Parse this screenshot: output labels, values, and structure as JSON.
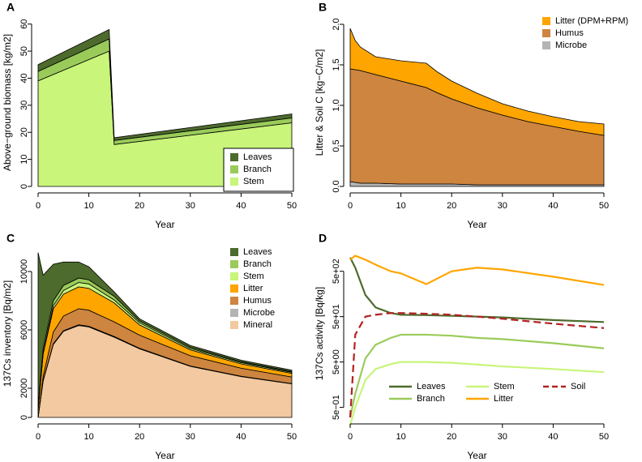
{
  "chart_data": [
    {
      "type": "area",
      "title": "A",
      "xlabel": "Year",
      "ylabel": "Above−ground biomass [kg/m2]",
      "x": [
        0,
        14,
        15,
        50
      ],
      "series": [
        {
          "name": "Stem",
          "color": "#c8f57a",
          "values": [
            39,
            50,
            15.5,
            23.5
          ]
        },
        {
          "name": "Branch",
          "color": "#9acb5a",
          "values": [
            3.5,
            4.5,
            1.5,
            1.8
          ]
        },
        {
          "name": "Leaves",
          "color": "#4d6b2c",
          "values": [
            2.5,
            3.5,
            1,
            1.5
          ]
        }
      ],
      "xlim": [
        0,
        50
      ],
      "xticks": [
        0,
        10,
        20,
        30,
        40,
        50
      ],
      "ylim": [
        0,
        62
      ],
      "yticks": [
        0,
        10,
        20,
        30,
        40,
        50,
        60
      ],
      "legend": "bottomright",
      "legend_box": true
    },
    {
      "type": "area",
      "title": "B",
      "xlabel": "Year",
      "ylabel": "Litter & Soil C [kg−C/m2]",
      "x": [
        0,
        1,
        2,
        5,
        10,
        15,
        17,
        20,
        25,
        30,
        35,
        40,
        45,
        50
      ],
      "series": [
        {
          "name": "Microbe",
          "color": "#b4b4b4",
          "values": [
            0.06,
            0.05,
            0.04,
            0.04,
            0.03,
            0.03,
            0.03,
            0.03,
            0.02,
            0.02,
            0.02,
            0.02,
            0.02,
            0.02
          ]
        },
        {
          "name": "Humus",
          "color": "#cd853f",
          "values": [
            1.39,
            1.39,
            1.39,
            1.34,
            1.27,
            1.19,
            1.13,
            1.05,
            0.95,
            0.86,
            0.78,
            0.72,
            0.66,
            0.61
          ]
        },
        {
          "name": "Litter (DPM+RPM)",
          "color": "#ffa500",
          "values": [
            0.5,
            0.36,
            0.29,
            0.22,
            0.25,
            0.3,
            0.26,
            0.22,
            0.18,
            0.14,
            0.13,
            0.12,
            0.12,
            0.14
          ]
        }
      ],
      "xlim": [
        0,
        50
      ],
      "xticks": [
        0,
        10,
        20,
        30,
        40,
        50
      ],
      "ylim": [
        0,
        2.07
      ],
      "yticks": [
        {
          "value": 0,
          "label": "0.0"
        },
        0.5,
        {
          "value": 1,
          "label": "1.0"
        },
        1.5,
        {
          "value": 2,
          "label": "2.0"
        }
      ],
      "legend": "topright",
      "legend_box": false
    },
    {
      "type": "area",
      "title": "C",
      "xlabel": "Year",
      "ylabel": "137Cs inventory [Bq/m2]",
      "x": [
        0,
        1,
        3,
        5,
        8,
        10,
        15,
        20,
        30,
        40,
        50
      ],
      "series": [
        {
          "name": "Mineral",
          "color": "#f2c9a0",
          "values": [
            0,
            2500,
            5000,
            5900,
            6300,
            6200,
            5500,
            4700,
            3500,
            2800,
            2300
          ]
        },
        {
          "name": "Microbe",
          "color": "#b4b4b4",
          "values": [
            0,
            50,
            50,
            50,
            50,
            50,
            50,
            40,
            30,
            25,
            20
          ]
        },
        {
          "name": "Humus",
          "color": "#cd853f",
          "values": [
            0,
            300,
            800,
            1000,
            1100,
            1100,
            1000,
            900,
            700,
            550,
            450
          ]
        },
        {
          "name": "Litter",
          "color": "#ffa500",
          "values": [
            500,
            1500,
            1600,
            1500,
            1500,
            1500,
            1300,
            700,
            400,
            300,
            250
          ]
        },
        {
          "name": "Stem",
          "color": "#c8f57a",
          "values": [
            0,
            100,
            200,
            250,
            300,
            300,
            200,
            150,
            100,
            80,
            70
          ]
        },
        {
          "name": "Branch",
          "color": "#9acb5a",
          "values": [
            300,
            300,
            350,
            350,
            300,
            280,
            250,
            120,
            80,
            60,
            50
          ]
        },
        {
          "name": "Leaves",
          "color": "#4d6b2c",
          "values": [
            10500,
            5000,
            2500,
            1600,
            1100,
            900,
            300,
            150,
            120,
            110,
            100
          ]
        }
      ],
      "xlim": [
        0,
        50
      ],
      "xticks": [
        0,
        10,
        20,
        30,
        40,
        50
      ],
      "ylim": [
        0,
        11500
      ],
      "yticks": [
        0,
        2000,
        6000,
        10000
      ],
      "legend": "topright",
      "legend_box": false
    },
    {
      "type": "line",
      "title": "D",
      "xlabel": "Year",
      "ylabel": "137Cs activity [Bq/kg]",
      "log": true,
      "x": [
        0,
        1,
        3,
        5,
        8,
        10,
        15,
        20,
        25,
        30,
        40,
        50
      ],
      "series": [
        {
          "name": "Leaves",
          "color": "#4d6b2c",
          "values": [
            1000,
            600,
            150,
            80,
            60,
            55,
            54,
            52,
            50,
            48,
            42,
            38
          ]
        },
        {
          "name": "Branch",
          "color": "#9acb5a",
          "values": [
            0.3,
            1,
            6,
            12,
            17,
            20,
            20,
            19,
            17,
            16,
            13,
            10
          ]
        },
        {
          "name": "Stem",
          "color": "#c8f57a",
          "values": [
            0.2,
            0.5,
            2,
            3.5,
            4.5,
            5,
            5,
            4.8,
            4.4,
            4,
            3.5,
            3
          ]
        },
        {
          "name": "Litter",
          "color": "#ffa500",
          "values": [
            900,
            1100,
            900,
            700,
            500,
            450,
            260,
            500,
            600,
            550,
            380,
            250
          ]
        },
        {
          "name": "Soil",
          "color": "#b22222",
          "dash": true,
          "values": [
            0.3,
            20,
            50,
            55,
            60,
            60,
            58,
            55,
            50,
            45,
            35,
            28
          ]
        }
      ],
      "xlim": [
        0,
        50
      ],
      "xticks": [
        0,
        10,
        20,
        30,
        40,
        50
      ],
      "ylim": [
        0.3,
        1500
      ],
      "yticks": [
        {
          "value": 0.5,
          "label": "5e−01"
        },
        {
          "value": 5,
          "label": "5e+00"
        },
        {
          "value": 50,
          "label": "5e+01"
        },
        {
          "value": 500,
          "label": "5e+02"
        }
      ],
      "legend": "bottom",
      "legend_box": false
    }
  ]
}
